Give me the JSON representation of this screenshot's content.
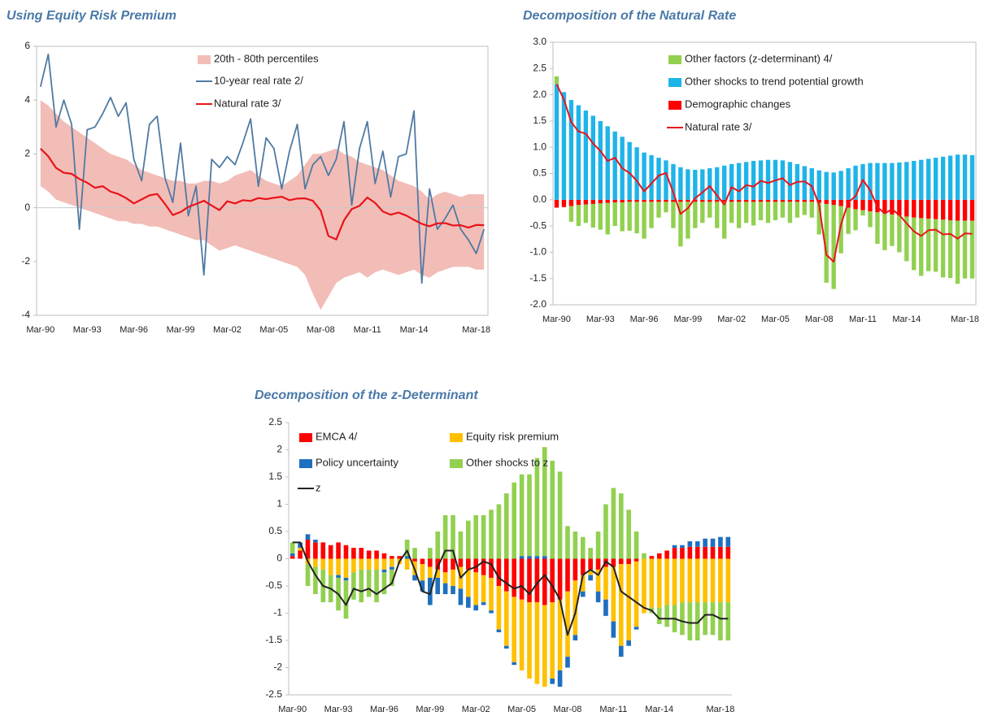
{
  "chart_data": [
    {
      "type": "line",
      "title": "Using Equity Risk Premium",
      "categories": [
        "Mar-90",
        null,
        null,
        null,
        null,
        null,
        "Mar-93",
        null,
        null,
        null,
        null,
        null,
        "Mar-96",
        null,
        null,
        null,
        null,
        null,
        "Mar-99",
        null,
        null,
        null,
        null,
        null,
        "Mar-02",
        null,
        null,
        null,
        null,
        null,
        "Mar-05",
        null,
        null,
        null,
        null,
        null,
        "Mar-08",
        null,
        null,
        null,
        null,
        null,
        "Mar-11",
        null,
        null,
        null,
        null,
        null,
        "Mar-14",
        null,
        null,
        null,
        null,
        null,
        null,
        null,
        "Mar-18",
        null
      ],
      "band": {
        "name": "20th - 80th percentiles",
        "color": "#f2bdb7",
        "upper": [
          4.0,
          3.8,
          3.5,
          3.2,
          3.0,
          2.8,
          2.6,
          2.4,
          2.2,
          2.0,
          1.9,
          1.8,
          1.6,
          1.4,
          1.3,
          1.2,
          1.1,
          1.0,
          1.0,
          0.9,
          0.9,
          1.0,
          1.0,
          0.9,
          1.0,
          1.2,
          1.3,
          1.4,
          1.2,
          1.0,
          0.9,
          0.8,
          1.0,
          1.2,
          1.6,
          2.0,
          2.0,
          2.1,
          2.2,
          2.0,
          1.9,
          1.7,
          1.6,
          1.5,
          1.4,
          1.2,
          1.0,
          0.9,
          0.8,
          0.6,
          0.3,
          0.5,
          0.6,
          0.5,
          0.4,
          0.5,
          0.5,
          0.5
        ],
        "lower": [
          0.8,
          0.6,
          0.3,
          0.2,
          0.1,
          0,
          -0.1,
          -0.2,
          -0.3,
          -0.4,
          -0.5,
          -0.5,
          -0.6,
          -0.6,
          -0.7,
          -0.7,
          -0.8,
          -0.9,
          -1.0,
          -1.1,
          -1.2,
          -1.2,
          -1.4,
          -1.6,
          -1.5,
          -1.4,
          -1.5,
          -1.6,
          -1.7,
          -1.8,
          -1.9,
          -2.0,
          -2.1,
          -2.2,
          -2.5,
          -3.2,
          -3.8,
          -3.3,
          -2.8,
          -2.6,
          -2.5,
          -2.4,
          -2.6,
          -2.4,
          -2.3,
          -2.4,
          -2.5,
          -2.4,
          -2.3,
          -2.5,
          -2.6,
          -2.4,
          -2.3,
          -2.2,
          -2.2,
          -2.2,
          -2.3,
          -2.3
        ]
      },
      "series": [
        {
          "name": "10-year real rate 2/",
          "color": "#4f7aa3",
          "values": [
            4.5,
            5.7,
            3.0,
            4.0,
            3.1,
            -0.8,
            2.9,
            3.0,
            3.5,
            4.1,
            3.4,
            3.9,
            1.8,
            1.0,
            3.1,
            3.4,
            1.1,
            0.2,
            2.4,
            -0.3,
            0.8,
            -2.5,
            1.8,
            1.5,
            1.9,
            1.6,
            2.4,
            3.3,
            0.8,
            2.6,
            2.2,
            0.7,
            2.1,
            3.1,
            0.7,
            1.6,
            1.9,
            1.2,
            1.8,
            3.2,
            0.1,
            2.2,
            3.2,
            0.9,
            2.1,
            0.4,
            1.9,
            2.0,
            3.6,
            -2.8,
            0.7,
            -0.8,
            -0.4,
            0.1,
            -0.8,
            -1.2,
            -1.7,
            -0.8
          ]
        },
        {
          "name": "Natural rate 3/",
          "color": "#e8141b",
          "values": [
            2.2,
            1.91,
            1.48,
            1.3,
            1.26,
            1.07,
            0.93,
            0.74,
            0.8,
            0.6,
            0.51,
            0.36,
            0.16,
            0.31,
            0.46,
            0.51,
            0.14,
            -0.27,
            -0.16,
            0.03,
            0.14,
            0.26,
            0.08,
            -0.09,
            0.24,
            0.16,
            0.28,
            0.25,
            0.36,
            0.32,
            0.37,
            0.41,
            0.28,
            0.34,
            0.35,
            0.26,
            -0.1,
            -1.05,
            -1.18,
            -0.47,
            -0.05,
            0.07,
            0.38,
            0.18,
            -0.14,
            -0.26,
            -0.18,
            -0.29,
            -0.45,
            -0.6,
            -0.69,
            -0.58,
            -0.57,
            -0.66,
            -0.65,
            -0.74,
            -0.64,
            -0.65
          ]
        }
      ],
      "ylim": [
        -4,
        6
      ],
      "yticks": [
        -4,
        -2,
        0,
        2,
        4,
        6
      ]
    },
    {
      "type": "bar",
      "stacked": true,
      "stack_order": "reverse",
      "title": "Decomposition of the Natural Rate",
      "categories": [
        "Mar-90",
        null,
        null,
        null,
        null,
        null,
        "Mar-93",
        null,
        null,
        null,
        null,
        null,
        "Mar-96",
        null,
        null,
        null,
        null,
        null,
        "Mar-99",
        null,
        null,
        null,
        null,
        null,
        "Mar-02",
        null,
        null,
        null,
        null,
        null,
        "Mar-05",
        null,
        null,
        null,
        null,
        null,
        "Mar-08",
        null,
        null,
        null,
        null,
        null,
        "Mar-11",
        null,
        null,
        null,
        null,
        null,
        "Mar-14",
        null,
        null,
        null,
        null,
        null,
        null,
        null,
        "Mar-18",
        null
      ],
      "series": [
        {
          "name": "Other factors (z-determinant) 4/",
          "color": "#92d050",
          "values": [
            0.15,
            0,
            -0.3,
            -0.4,
            -0.35,
            -0.45,
            -0.5,
            -0.6,
            -0.45,
            -0.55,
            -0.55,
            -0.6,
            -0.7,
            -0.5,
            -0.3,
            -0.2,
            -0.5,
            -0.85,
            -0.7,
            -0.5,
            -0.4,
            -0.3,
            -0.5,
            -0.7,
            -0.4,
            -0.5,
            -0.4,
            -0.45,
            -0.35,
            -0.4,
            -0.35,
            -0.3,
            -0.4,
            -0.3,
            -0.25,
            -0.3,
            -0.6,
            -1.5,
            -1.6,
            -0.9,
            -0.5,
            -0.4,
            -0.1,
            -0.3,
            -0.6,
            -0.7,
            -0.6,
            -0.7,
            -0.85,
            -1.0,
            -1.1,
            -1.0,
            -1.0,
            -1.1,
            -1.1,
            -1.2,
            -1.1,
            -1.1
          ]
        },
        {
          "name": "Other shocks to trend potential growth",
          "color": "#1fb4e8",
          "values": [
            2.2,
            2.05,
            1.9,
            1.8,
            1.7,
            1.6,
            1.5,
            1.4,
            1.3,
            1.2,
            1.1,
            1.0,
            0.9,
            0.85,
            0.8,
            0.75,
            0.68,
            0.62,
            0.58,
            0.57,
            0.58,
            0.6,
            0.62,
            0.65,
            0.68,
            0.7,
            0.72,
            0.74,
            0.75,
            0.76,
            0.76,
            0.75,
            0.72,
            0.68,
            0.64,
            0.6,
            0.56,
            0.53,
            0.52,
            0.55,
            0.6,
            0.65,
            0.68,
            0.7,
            0.7,
            0.7,
            0.7,
            0.71,
            0.72,
            0.74,
            0.76,
            0.78,
            0.8,
            0.82,
            0.84,
            0.86,
            0.86,
            0.85
          ]
        },
        {
          "name": "Demographic changes",
          "color": "#ff0000",
          "values": [
            -0.15,
            -0.14,
            -0.12,
            -0.1,
            -0.09,
            -0.08,
            -0.07,
            -0.06,
            -0.05,
            -0.05,
            -0.04,
            -0.04,
            -0.04,
            -0.04,
            -0.04,
            -0.04,
            -0.04,
            -0.04,
            -0.04,
            -0.04,
            -0.04,
            -0.04,
            -0.04,
            -0.04,
            -0.04,
            -0.04,
            -0.04,
            -0.04,
            -0.04,
            -0.04,
            -0.04,
            -0.04,
            -0.04,
            -0.04,
            -0.04,
            -0.04,
            -0.06,
            -0.08,
            -0.1,
            -0.12,
            -0.15,
            -0.18,
            -0.2,
            -0.22,
            -0.24,
            -0.26,
            -0.28,
            -0.3,
            -0.32,
            -0.34,
            -0.35,
            -0.36,
            -0.37,
            -0.38,
            -0.39,
            -0.4,
            -0.4,
            -0.4
          ]
        },
        {
          "name": "Natural rate 3/",
          "type": "line",
          "color": "#e8141b",
          "values": [
            2.2,
            1.91,
            1.48,
            1.3,
            1.26,
            1.07,
            0.93,
            0.74,
            0.8,
            0.6,
            0.51,
            0.36,
            0.16,
            0.31,
            0.46,
            0.51,
            0.14,
            -0.27,
            -0.16,
            0.03,
            0.14,
            0.26,
            0.08,
            -0.09,
            0.24,
            0.16,
            0.28,
            0.25,
            0.36,
            0.32,
            0.37,
            0.41,
            0.28,
            0.34,
            0.35,
            0.26,
            -0.1,
            -1.05,
            -1.18,
            -0.47,
            -0.05,
            0.07,
            0.38,
            0.18,
            -0.14,
            -0.26,
            -0.18,
            -0.29,
            -0.45,
            -0.6,
            -0.69,
            -0.58,
            -0.57,
            -0.66,
            -0.65,
            -0.74,
            -0.64,
            -0.65
          ]
        }
      ],
      "ylim": [
        -2,
        3
      ],
      "yticks": [
        {
          "value": -2,
          "label": "-2.0"
        },
        {
          "value": -1.5,
          "label": "-1.5"
        },
        {
          "value": -1,
          "label": "-1.0"
        },
        {
          "value": -0.5,
          "label": "-0.5"
        },
        {
          "value": 0,
          "label": "0.0"
        },
        {
          "value": 0.5,
          "label": "0.5"
        },
        {
          "value": 1,
          "label": "1.0"
        },
        {
          "value": 1.5,
          "label": "1.5"
        },
        {
          "value": 2,
          "label": "2.0"
        },
        {
          "value": 2.5,
          "label": "2.5"
        },
        {
          "value": 3,
          "label": "3.0"
        }
      ]
    },
    {
      "type": "bar",
      "stacked": true,
      "stack_order": "forward",
      "title": "Decomposition of the z-Determinant",
      "categories": [
        "Mar-90",
        null,
        null,
        null,
        null,
        null,
        "Mar-93",
        null,
        null,
        null,
        null,
        null,
        "Mar-96",
        null,
        null,
        null,
        null,
        null,
        "Mar-99",
        null,
        null,
        null,
        null,
        null,
        "Mar-02",
        null,
        null,
        null,
        null,
        null,
        "Mar-05",
        null,
        null,
        null,
        null,
        null,
        "Mar-08",
        null,
        null,
        null,
        null,
        null,
        "Mar-11",
        null,
        null,
        null,
        null,
        null,
        "Mar-14",
        null,
        null,
        null,
        null,
        null,
        null,
        null,
        "Mar-18",
        null
      ],
      "series": [
        {
          "name": "EMCA 4/",
          "color": "#ff0000",
          "values": [
            0.05,
            0.15,
            0.35,
            0.3,
            0.3,
            0.25,
            0.3,
            0.25,
            0.2,
            0.2,
            0.15,
            0.15,
            0.1,
            0.05,
            0.05,
            0,
            -0.05,
            -0.1,
            -0.15,
            -0.2,
            -0.25,
            -0.2,
            -0.15,
            -0.2,
            -0.25,
            -0.3,
            -0.35,
            -0.5,
            -0.6,
            -0.7,
            -0.75,
            -0.8,
            -0.8,
            -0.85,
            -0.8,
            -0.75,
            -0.6,
            -0.4,
            -0.3,
            -0.2,
            -0.2,
            -0.15,
            -0.15,
            -0.1,
            -0.1,
            -0.05,
            0,
            0.05,
            0.1,
            0.15,
            0.2,
            0.2,
            0.22,
            0.22,
            0.22,
            0.22,
            0.22,
            0.22
          ]
        },
        {
          "name": "Equity risk premium",
          "color": "#ffc000",
          "values": [
            0,
            0.05,
            -0.1,
            -0.15,
            -0.2,
            -0.3,
            -0.3,
            -0.35,
            -0.25,
            -0.2,
            -0.2,
            -0.2,
            -0.2,
            -0.15,
            -0.1,
            -0.2,
            -0.25,
            -0.3,
            -0.2,
            -0.15,
            -0.2,
            -0.3,
            -0.4,
            -0.5,
            -0.6,
            -0.5,
            -0.6,
            -0.8,
            -1.0,
            -1.2,
            -1.3,
            -1.4,
            -1.5,
            -1.5,
            -1.4,
            -1.3,
            -1.2,
            -1.0,
            -0.3,
            -0.1,
            -0.4,
            -0.6,
            -1.0,
            -1.5,
            -1.4,
            -1.2,
            -1.0,
            -0.9,
            -0.9,
            -0.85,
            -0.85,
            -0.8,
            -0.8,
            -0.8,
            -0.8,
            -0.8,
            -0.8,
            -0.8
          ]
        },
        {
          "name": "Policy uncertainty",
          "color": "#1f6fbf",
          "values": [
            0.05,
            0.1,
            0.1,
            0.05,
            0,
            0,
            -0.05,
            -0.05,
            0,
            0,
            0,
            0,
            -0.05,
            -0.05,
            0,
            0.05,
            -0.1,
            -0.2,
            -0.5,
            -0.3,
            -0.2,
            -0.15,
            -0.3,
            -0.2,
            -0.1,
            -0.05,
            -0.05,
            -0.05,
            -0.05,
            -0.05,
            0.05,
            0.05,
            0.05,
            0.05,
            -0.1,
            -0.3,
            -0.2,
            -0.1,
            -0.1,
            -0.1,
            -0.2,
            -0.3,
            -0.3,
            -0.2,
            -0.1,
            -0.05,
            0,
            0,
            0,
            0,
            0.05,
            0.05,
            0.1,
            0.1,
            0.15,
            0.15,
            0.18,
            0.18
          ]
        },
        {
          "name": "Other shocks to z",
          "color": "#92d050",
          "values": [
            0.2,
            0,
            -0.4,
            -0.5,
            -0.6,
            -0.5,
            -0.6,
            -0.7,
            -0.5,
            -0.6,
            -0.5,
            -0.6,
            -0.4,
            -0.3,
            0,
            0.3,
            0.2,
            0,
            0.2,
            0.5,
            0.8,
            0.8,
            0.5,
            0.7,
            0.8,
            0.8,
            0.9,
            1.0,
            1.2,
            1.4,
            1.5,
            1.5,
            1.8,
            2.0,
            1.8,
            1.6,
            0.6,
            0.5,
            0.4,
            0.2,
            0.5,
            1.0,
            1.3,
            1.2,
            0.9,
            0.5,
            0.1,
            -0.1,
            -0.3,
            -0.4,
            -0.5,
            -0.6,
            -0.7,
            -0.7,
            -0.6,
            -0.6,
            -0.7,
            -0.7
          ]
        },
        {
          "name": "z",
          "type": "line",
          "color": "#222222",
          "values": [
            0.3,
            0.3,
            -0.05,
            -0.3,
            -0.5,
            -0.55,
            -0.65,
            -0.85,
            -0.55,
            -0.6,
            -0.55,
            -0.65,
            -0.55,
            -0.45,
            -0.05,
            0.15,
            -0.2,
            -0.6,
            -0.65,
            -0.15,
            0.15,
            0.15,
            -0.35,
            -0.2,
            -0.15,
            -0.05,
            -0.1,
            -0.35,
            -0.45,
            -0.55,
            -0.5,
            -0.65,
            -0.45,
            -0.3,
            -0.5,
            -0.75,
            -1.4,
            -1.0,
            -0.3,
            -0.2,
            -0.3,
            -0.05,
            -0.15,
            -0.6,
            -0.7,
            -0.8,
            -0.9,
            -0.95,
            -1.1,
            -1.1,
            -1.1,
            -1.15,
            -1.18,
            -1.18,
            -1.03,
            -1.03,
            -1.1,
            -1.1
          ]
        }
      ],
      "ylim": [
        -2.5,
        2.5
      ],
      "yticks": [
        -2.5,
        -2,
        -1.5,
        -1,
        -0.5,
        0,
        0.5,
        1,
        1.5,
        2,
        2.5
      ]
    }
  ]
}
